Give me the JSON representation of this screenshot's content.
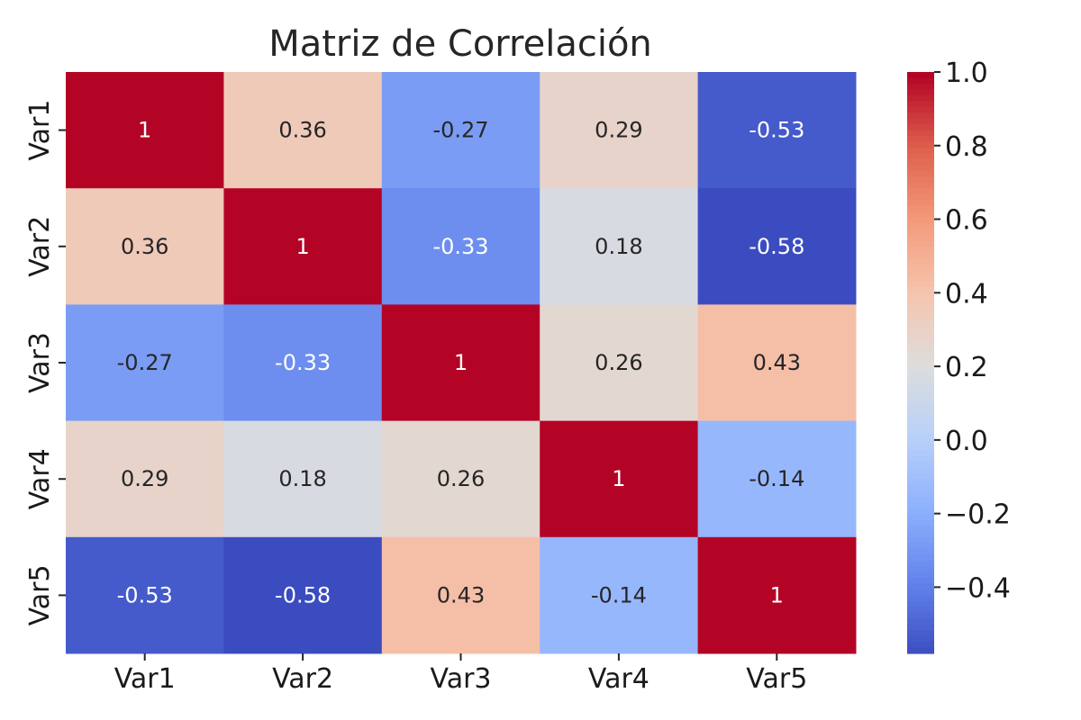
{
  "chart_data": {
    "type": "heatmap",
    "title": "Matriz de Correlación",
    "xlabel": "",
    "ylabel": "",
    "x_categories": [
      "Var1",
      "Var2",
      "Var3",
      "Var4",
      "Var5"
    ],
    "y_categories": [
      "Var1",
      "Var2",
      "Var3",
      "Var4",
      "Var5"
    ],
    "values": [
      [
        1,
        0.36,
        -0.27,
        0.29,
        -0.53
      ],
      [
        0.36,
        1,
        -0.33,
        0.18,
        -0.58
      ],
      [
        -0.27,
        -0.33,
        1,
        0.26,
        0.43
      ],
      [
        0.29,
        0.18,
        0.26,
        1,
        -0.14
      ],
      [
        -0.53,
        -0.58,
        0.43,
        -0.14,
        1
      ]
    ],
    "value_labels": [
      [
        "1",
        "0.36",
        "-0.27",
        "0.29",
        "-0.53"
      ],
      [
        "0.36",
        "1",
        "-0.33",
        "0.18",
        "-0.58"
      ],
      [
        "-0.27",
        "-0.33",
        "1",
        "0.26",
        "0.43"
      ],
      [
        "0.29",
        "0.18",
        "0.26",
        "1",
        "-0.14"
      ],
      [
        "-0.53",
        "-0.58",
        "0.43",
        "-0.14",
        "1"
      ]
    ],
    "colormap": "coolwarm",
    "colorbar": {
      "range": [
        -0.58,
        1.0
      ],
      "ticks": [
        1.0,
        0.8,
        0.6,
        0.4,
        0.2,
        0.0,
        -0.2,
        -0.4
      ],
      "tick_labels": [
        "1.0",
        "0.8",
        "0.6",
        "0.4",
        "0.2",
        "0.0",
        "−0.2",
        "−0.4"
      ]
    },
    "grid": false,
    "legend": "colorbar-right"
  }
}
